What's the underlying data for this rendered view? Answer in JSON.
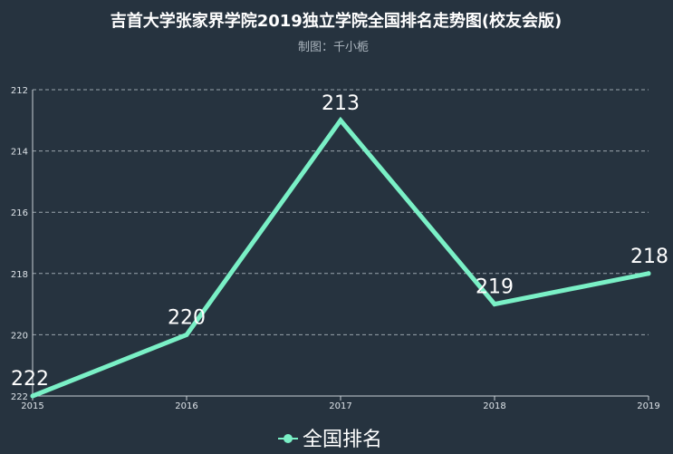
{
  "chart_data": {
    "type": "line",
    "title": "吉首大学张家界学院2019独立学院全国排名走势图(校友会版)",
    "subtitle": "制图：千小栀",
    "x": [
      "2015",
      "2016",
      "2017",
      "2018",
      "2019"
    ],
    "series": [
      {
        "name": "全国排名",
        "values": [
          222,
          220,
          213,
          219,
          218
        ],
        "color": "#7af0c6"
      }
    ],
    "y_ticks": [
      "212",
      "214",
      "216",
      "218",
      "220",
      "222"
    ],
    "ylim": [
      212,
      222
    ],
    "y_inverted": true,
    "grid": true,
    "legend": "bottom-center"
  },
  "colors": {
    "background": "#26333f",
    "line": "#7af0c6",
    "grid": "#9aa5ad",
    "axis": "#c8cfd5"
  }
}
